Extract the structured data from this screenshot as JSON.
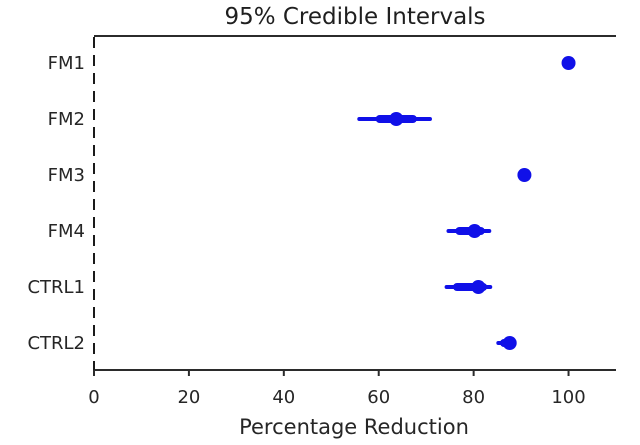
{
  "window": {
    "background": "#ffffff"
  },
  "chart_data": {
    "type": "scatter",
    "subtype": "forest-plot-credible-intervals",
    "title": "95% Credible Intervals",
    "xlabel": "Percentage Reduction",
    "ylabel": "",
    "xlim": [
      0,
      110
    ],
    "xticks": [
      0,
      20,
      40,
      60,
      80,
      100
    ],
    "grid": false,
    "legend_position": "none",
    "categories": [
      "FM1",
      "FM2",
      "FM3",
      "FM4",
      "CTRL1",
      "CTRL2"
    ],
    "series": [
      {
        "name": "FM1",
        "mean": 100.0,
        "ci95": [
          99.4,
          100.5
        ],
        "ci50": [
          99.7,
          100.3
        ]
      },
      {
        "name": "FM2",
        "mean": 63.7,
        "ci95": [
          55.9,
          70.8
        ],
        "ci50": [
          60.2,
          67.2
        ]
      },
      {
        "name": "FM3",
        "mean": 90.7,
        "ci95": [
          90.1,
          91.2
        ],
        "ci50": [
          90.4,
          91.0
        ]
      },
      {
        "name": "FM4",
        "mean": 80.2,
        "ci95": [
          74.7,
          83.3
        ],
        "ci50": [
          77.0,
          81.5
        ]
      },
      {
        "name": "CTRL1",
        "mean": 81.0,
        "ci95": [
          74.3,
          83.5
        ],
        "ci50": [
          76.5,
          82.0
        ]
      },
      {
        "name": "CTRL2",
        "mean": 87.6,
        "ci95": [
          85.2,
          88.6
        ],
        "ci50": [
          86.4,
          88.2
        ]
      }
    ],
    "colors": {
      "marker": "#1010e8",
      "interval_line": "#1010e8",
      "axis": "#2b2b2b",
      "text": "#262626",
      "zero_line": "#1a1a1a"
    },
    "styles": {
      "zero_line": "dashed",
      "spines_visible": [
        "top",
        "bottom",
        "left-dashed"
      ],
      "marker_shape": "circle"
    }
  }
}
